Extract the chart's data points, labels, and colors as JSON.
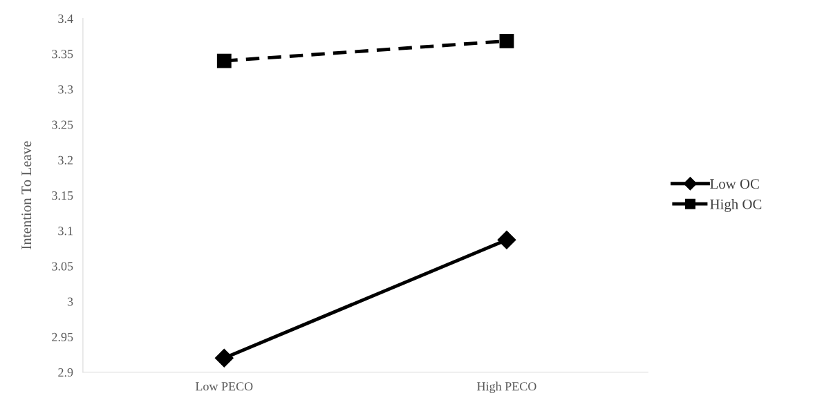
{
  "chart_data": {
    "type": "line",
    "ylabel": "Intention To Leave",
    "categories": [
      "Low PECO",
      "High PECO"
    ],
    "series": [
      {
        "name": "Low OC",
        "color": "#000000",
        "values": [
          2.92,
          3.087
        ],
        "marker": "diamond",
        "line_style": "solid"
      },
      {
        "name": "High OC",
        "color": "#000000",
        "values": [
          3.34,
          3.368
        ],
        "marker": "square",
        "line_style": "dashed"
      }
    ],
    "ylim": [
      2.9,
      3.4
    ],
    "yticks": [
      {
        "value": 2.9,
        "label": "2.9"
      },
      {
        "value": 2.95,
        "label": "2.95"
      },
      {
        "value": 3,
        "label": "3"
      },
      {
        "value": 3.05,
        "label": "3.05"
      },
      {
        "value": 3.1,
        "label": "3.1"
      },
      {
        "value": 3.15,
        "label": "3.15"
      },
      {
        "value": 3.2,
        "label": "3.2"
      },
      {
        "value": 3.25,
        "label": "3.25"
      },
      {
        "value": 3.3,
        "label": "3.3"
      },
      {
        "value": 3.35,
        "label": "3.35"
      },
      {
        "value": 3.4,
        "label": "3.4"
      }
    ],
    "grid": false,
    "legend": "right"
  }
}
